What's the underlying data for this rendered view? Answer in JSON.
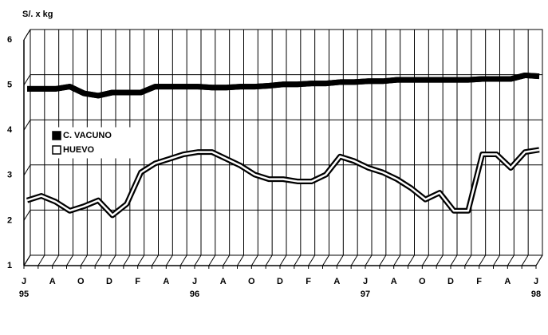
{
  "chart_data": {
    "type": "line",
    "y_axis_label": "S/. x kg",
    "categories": [
      "J",
      null,
      "A",
      null,
      "O",
      null,
      "D",
      null,
      "F",
      null,
      "A",
      null,
      "J",
      null,
      "A",
      null,
      "O",
      null,
      "D",
      null,
      "F",
      null,
      "A",
      null,
      "J",
      null,
      "A",
      null,
      "O",
      null,
      "D",
      null,
      "F",
      null,
      "A",
      null,
      "J"
    ],
    "x_sublabels": [
      "95",
      null,
      null,
      null,
      null,
      null,
      null,
      null,
      null,
      null,
      null,
      null,
      "96",
      null,
      null,
      null,
      null,
      null,
      null,
      null,
      null,
      null,
      null,
      null,
      "97",
      null,
      null,
      null,
      null,
      null,
      null,
      null,
      null,
      null,
      null,
      null,
      "98"
    ],
    "series": [
      {
        "name": "C. VACUNO",
        "color": "#000000",
        "values": [
          4.8,
          4.8,
          4.8,
          4.85,
          4.7,
          4.65,
          4.72,
          4.72,
          4.72,
          4.85,
          4.85,
          4.85,
          4.85,
          4.83,
          4.83,
          4.85,
          4.85,
          4.87,
          4.9,
          4.9,
          4.92,
          4.92,
          4.95,
          4.95,
          4.97,
          4.97,
          5.0,
          5.0,
          5.0,
          5.0,
          5.0,
          5.0,
          5.02,
          5.02,
          5.02,
          5.1,
          5.08
        ]
      },
      {
        "name": "HUEVO",
        "color": "#ffffff",
        "values": [
          2.33,
          2.43,
          2.3,
          2.1,
          2.2,
          2.33,
          2.0,
          2.25,
          2.95,
          3.15,
          3.25,
          3.35,
          3.4,
          3.4,
          3.25,
          3.1,
          2.9,
          2.8,
          2.8,
          2.75,
          2.75,
          2.9,
          3.3,
          3.2,
          3.05,
          2.95,
          2.8,
          2.6,
          2.35,
          2.5,
          2.1,
          2.1,
          3.35,
          3.35,
          3.05,
          3.4,
          3.45
        ]
      }
    ],
    "ylim": [
      1,
      6
    ],
    "yticks": [
      1,
      2,
      3,
      4,
      5,
      6
    ],
    "grid": true,
    "legend_position": "left"
  }
}
